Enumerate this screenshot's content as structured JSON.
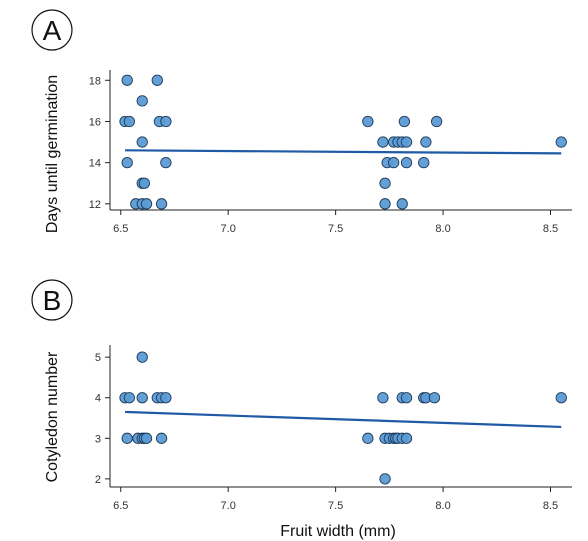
{
  "colors": {
    "point_fill": "#5b9bd5",
    "point_stroke": "#1f3b5a",
    "fit_line": "#1f5aa6",
    "axis": "#222222"
  },
  "shared_xlabel": "Fruit width (mm)",
  "chart_data": [
    {
      "type": "scatter",
      "panel_label": "A",
      "title": "",
      "xlabel": "",
      "ylabel": "Days until germination",
      "xlim": [
        6.45,
        8.6
      ],
      "ylim": [
        11.7,
        18.5
      ],
      "xticks": [
        6.5,
        7.0,
        7.5,
        8.0,
        8.5
      ],
      "xtick_labels": [
        "6.5",
        "7.0",
        "7.5",
        "8.0",
        "8.5"
      ],
      "yticks": [
        12,
        14,
        16,
        18
      ],
      "ytick_labels": [
        "12",
        "14",
        "16",
        "18"
      ],
      "grid": false,
      "points": [
        {
          "x": 6.53,
          "y": 18
        },
        {
          "x": 6.67,
          "y": 18
        },
        {
          "x": 6.6,
          "y": 17
        },
        {
          "x": 6.52,
          "y": 16
        },
        {
          "x": 6.54,
          "y": 16
        },
        {
          "x": 6.68,
          "y": 16
        },
        {
          "x": 6.71,
          "y": 16
        },
        {
          "x": 6.6,
          "y": 15
        },
        {
          "x": 6.53,
          "y": 14
        },
        {
          "x": 6.71,
          "y": 14
        },
        {
          "x": 6.6,
          "y": 13
        },
        {
          "x": 6.61,
          "y": 13
        },
        {
          "x": 6.57,
          "y": 12
        },
        {
          "x": 6.6,
          "y": 12
        },
        {
          "x": 6.62,
          "y": 12
        },
        {
          "x": 6.69,
          "y": 12
        },
        {
          "x": 7.65,
          "y": 16
        },
        {
          "x": 7.82,
          "y": 16
        },
        {
          "x": 7.97,
          "y": 16
        },
        {
          "x": 7.72,
          "y": 15
        },
        {
          "x": 7.77,
          "y": 15
        },
        {
          "x": 7.79,
          "y": 15
        },
        {
          "x": 7.81,
          "y": 15
        },
        {
          "x": 7.83,
          "y": 15
        },
        {
          "x": 7.92,
          "y": 15
        },
        {
          "x": 8.55,
          "y": 15
        },
        {
          "x": 7.74,
          "y": 14
        },
        {
          "x": 7.77,
          "y": 14
        },
        {
          "x": 7.83,
          "y": 14
        },
        {
          "x": 7.91,
          "y": 14
        },
        {
          "x": 7.73,
          "y": 13
        },
        {
          "x": 7.73,
          "y": 12
        },
        {
          "x": 7.81,
          "y": 12
        }
      ],
      "fit": {
        "x": [
          6.52,
          8.55
        ],
        "y": [
          14.6,
          14.45
        ]
      }
    },
    {
      "type": "scatter",
      "panel_label": "B",
      "title": "",
      "xlabel": "",
      "ylabel": "Cotyledon number",
      "xlim": [
        6.45,
        8.6
      ],
      "ylim": [
        1.8,
        5.3
      ],
      "xticks": [
        6.5,
        7.0,
        7.5,
        8.0,
        8.5
      ],
      "xtick_labels": [
        "6.5",
        "7.0",
        "7.5",
        "8.0",
        "8.5"
      ],
      "yticks": [
        2,
        3,
        4,
        5
      ],
      "ytick_labels": [
        "2",
        "3",
        "4",
        "5"
      ],
      "grid": false,
      "points": [
        {
          "x": 6.6,
          "y": 5
        },
        {
          "x": 6.52,
          "y": 4
        },
        {
          "x": 6.54,
          "y": 4
        },
        {
          "x": 6.6,
          "y": 4
        },
        {
          "x": 6.67,
          "y": 4
        },
        {
          "x": 6.69,
          "y": 4
        },
        {
          "x": 6.71,
          "y": 4
        },
        {
          "x": 6.53,
          "y": 3
        },
        {
          "x": 6.58,
          "y": 3
        },
        {
          "x": 6.6,
          "y": 3
        },
        {
          "x": 6.61,
          "y": 3
        },
        {
          "x": 6.62,
          "y": 3
        },
        {
          "x": 6.69,
          "y": 3
        },
        {
          "x": 7.72,
          "y": 4
        },
        {
          "x": 7.81,
          "y": 4
        },
        {
          "x": 7.83,
          "y": 4
        },
        {
          "x": 7.91,
          "y": 4
        },
        {
          "x": 7.92,
          "y": 4
        },
        {
          "x": 7.96,
          "y": 4
        },
        {
          "x": 8.55,
          "y": 4
        },
        {
          "x": 7.65,
          "y": 3
        },
        {
          "x": 7.73,
          "y": 3
        },
        {
          "x": 7.75,
          "y": 3
        },
        {
          "x": 7.77,
          "y": 3
        },
        {
          "x": 7.78,
          "y": 3
        },
        {
          "x": 7.79,
          "y": 3
        },
        {
          "x": 7.81,
          "y": 3
        },
        {
          "x": 7.83,
          "y": 3
        },
        {
          "x": 7.73,
          "y": 2
        }
      ],
      "fit": {
        "x": [
          6.52,
          8.55
        ],
        "y": [
          3.65,
          3.28
        ]
      }
    }
  ]
}
